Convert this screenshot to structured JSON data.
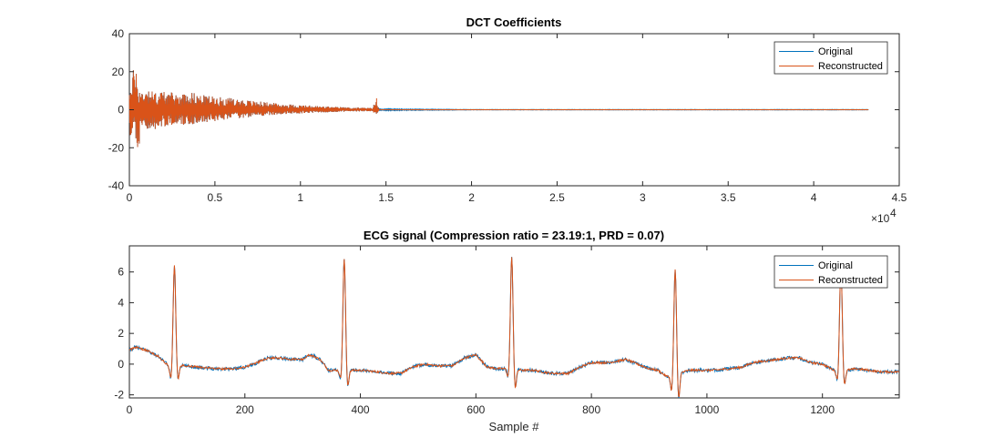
{
  "colors": {
    "original": "#0072BD",
    "reconstructed": "#D95319",
    "axis": "#262626"
  },
  "chart_data": [
    {
      "type": "line",
      "title": "DCT Coefficients",
      "xlabel": "",
      "ylabel": "",
      "xlim": [
        0,
        45000
      ],
      "ylim": [
        -40,
        40
      ],
      "xticks": [
        0,
        0.5,
        1,
        1.5,
        2,
        2.5,
        3,
        3.5,
        4,
        4.5
      ],
      "xtick_labels": [
        "0",
        "0.5",
        "1",
        "1.5",
        "2",
        "2.5",
        "3",
        "3.5",
        "4",
        "4.5"
      ],
      "x_exponent_label": "×10",
      "x_exponent_power": "4",
      "yticks": [
        40,
        20,
        0,
        -20,
        -40
      ],
      "ytick_labels": [
        "40",
        "20",
        "0",
        "-20",
        "-40"
      ],
      "legend": {
        "position": "top-right",
        "entries": [
          "Original",
          "Reconstructed"
        ]
      },
      "series": [
        {
          "name": "Original",
          "envelope": {
            "x": [
              0,
              150,
              300,
              500,
              700,
              1000,
              1500,
              2000,
              2500,
              3000,
              3500,
              4000,
              5000,
              6000,
              7000,
              8000,
              9000,
              10000,
              11000,
              12000,
              13000,
              14000,
              14200,
              14400,
              14600,
              20000,
              30000,
              43200
            ],
            "upper": [
              17,
              10,
              32,
              12,
              10,
              12,
              9,
              10,
              9,
              8,
              10,
              8,
              7,
              6,
              5,
              4,
              3,
              2.5,
              2,
              1.5,
              1.2,
              1,
              1,
              5,
              0.3,
              0.1,
              0.1,
              0.1
            ],
            "lower": [
              -20,
              -12,
              -10,
              -26,
              -10,
              -10,
              -12,
              -9,
              -8,
              -8,
              -8,
              -7,
              -6,
              -5,
              -4,
              -3,
              -2.5,
              -2,
              -1.5,
              -1.2,
              -1,
              -0.8,
              -0.8,
              -3,
              -0.3,
              -0.1,
              -0.1,
              -0.1
            ]
          }
        },
        {
          "name": "Reconstructed",
          "envelope": {
            "x": [
              0,
              150,
              300,
              500,
              700,
              1000,
              1500,
              2000,
              2500,
              3000,
              3500,
              4000,
              5000,
              6000,
              7000,
              8000,
              9000,
              10000,
              11000,
              12000,
              13000,
              14000,
              14200,
              14400,
              14600,
              20000,
              30000,
              43200
            ],
            "upper": [
              17,
              10,
              32,
              12,
              10,
              12,
              9,
              10,
              9,
              8,
              10,
              8,
              7,
              6,
              5,
              4,
              3,
              2.5,
              2,
              1.5,
              1.2,
              1,
              1,
              5,
              0,
              0,
              0,
              0
            ],
            "lower": [
              -20,
              -12,
              -10,
              -26,
              -10,
              -10,
              -12,
              -9,
              -8,
              -8,
              -8,
              -7,
              -6,
              -5,
              -4,
              -3,
              -2.5,
              -2,
              -1.5,
              -1.2,
              -1,
              -0.8,
              -0.8,
              -3,
              0,
              0,
              0,
              0
            ]
          }
        }
      ]
    },
    {
      "type": "line",
      "title": "ECG signal (Compression ratio = 23.19:1, PRD = 0.07)",
      "xlabel": "Sample #",
      "ylabel": "",
      "xlim": [
        0,
        1333
      ],
      "ylim": [
        -2.2,
        7.7
      ],
      "xticks": [
        0,
        200,
        400,
        600,
        800,
        1000,
        1200
      ],
      "xtick_labels": [
        "0",
        "200",
        "400",
        "600",
        "800",
        "1000",
        "1200"
      ],
      "yticks": [
        6,
        4,
        2,
        0,
        -2
      ],
      "ytick_labels": [
        "6",
        "4",
        "2",
        "0",
        "-2"
      ],
      "legend": {
        "position": "top-right",
        "entries": [
          "Original",
          "Reconstructed"
        ]
      },
      "baseline_points": {
        "x": [
          0,
          10,
          30,
          50,
          65,
          72,
          90,
          120,
          150,
          180,
          200,
          215,
          240,
          260,
          290,
          300,
          310,
          320,
          330,
          345,
          360,
          380,
          400,
          430,
          450,
          470,
          490,
          510,
          530,
          560,
          580,
          600,
          620,
          640,
          660,
          680,
          700,
          730,
          760,
          780,
          800,
          830,
          860,
          880,
          900,
          915,
          930,
          950,
          970,
          990,
          1010,
          1040,
          1060,
          1080,
          1100,
          1120,
          1140,
          1160,
          1180,
          1200,
          1220,
          1240,
          1260,
          1280,
          1300,
          1320,
          1333
        ],
        "y": [
          0.9,
          1.1,
          0.9,
          0.5,
          0,
          -0.2,
          -0.1,
          -0.2,
          -0.3,
          -0.3,
          -0.2,
          0,
          0.4,
          0.4,
          0.3,
          0.3,
          0.6,
          0.5,
          0.3,
          -0.4,
          -0.4,
          -0.4,
          -0.4,
          -0.5,
          -0.6,
          -0.6,
          -0.2,
          0,
          -0.1,
          -0.1,
          0.4,
          0.6,
          -0.2,
          -0.3,
          -0.3,
          -0.4,
          -0.4,
          -0.6,
          -0.6,
          -0.2,
          0.1,
          0.1,
          0.3,
          0,
          -0.3,
          -0.4,
          -0.8,
          -0.6,
          -0.4,
          -0.4,
          -0.4,
          -0.3,
          -0.2,
          0.1,
          0.2,
          0.3,
          0.4,
          0.4,
          0.1,
          0,
          -0.4,
          -0.4,
          -0.3,
          -0.4,
          -0.5,
          -0.5,
          -0.5
        ]
      },
      "beats": [
        {
          "x": 78,
          "peak": 6.6,
          "q": -0.8,
          "s": -0.9
        },
        {
          "x": 372,
          "peak": 7.3,
          "q": -0.6,
          "s": -1.1
        },
        {
          "x": 662,
          "peak": 7.3,
          "q": -0.6,
          "s": -1.3
        },
        {
          "x": 945,
          "peak": 6.8,
          "q": -1.1,
          "s": -1.7
        },
        {
          "x": 1232,
          "peak": 6.9,
          "q": -0.7,
          "s": -1.0
        }
      ],
      "series": [
        {
          "name": "Original"
        },
        {
          "name": "Reconstructed"
        }
      ]
    }
  ]
}
